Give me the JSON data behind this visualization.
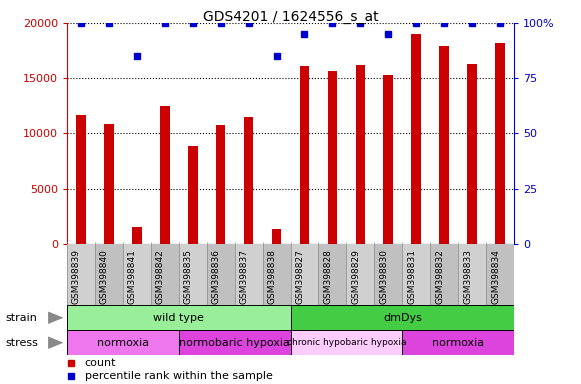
{
  "title": "GDS4201 / 1624556_s_at",
  "samples": [
    "GSM398839",
    "GSM398840",
    "GSM398841",
    "GSM398842",
    "GSM398835",
    "GSM398836",
    "GSM398837",
    "GSM398838",
    "GSM398827",
    "GSM398828",
    "GSM398829",
    "GSM398830",
    "GSM398831",
    "GSM398832",
    "GSM398833",
    "GSM398834"
  ],
  "counts": [
    11700,
    10900,
    1500,
    12500,
    8900,
    10800,
    11500,
    1300,
    16100,
    15700,
    16200,
    15300,
    19000,
    17900,
    16300,
    18200
  ],
  "percentile_ranks": [
    100,
    100,
    85,
    100,
    100,
    100,
    100,
    85,
    95,
    100,
    100,
    95,
    100,
    100,
    100,
    100
  ],
  "bar_color": "#cc0000",
  "dot_color": "#0000cc",
  "ylim_left": [
    0,
    20000
  ],
  "ylim_right": [
    0,
    100
  ],
  "yticks_left": [
    0,
    5000,
    10000,
    15000,
    20000
  ],
  "yticks_right": [
    0,
    25,
    50,
    75,
    100
  ],
  "ytick_labels_left": [
    "0",
    "5000",
    "10000",
    "15000",
    "20000"
  ],
  "ytick_labels_right": [
    "0",
    "25",
    "50",
    "75",
    "100%"
  ],
  "strain_groups": [
    {
      "label": "wild type",
      "start": 0,
      "end": 8,
      "color": "#99ee99"
    },
    {
      "label": "dmDys",
      "start": 8,
      "end": 16,
      "color": "#44cc44"
    }
  ],
  "stress_groups": [
    {
      "label": "normoxia",
      "start": 0,
      "end": 4,
      "color": "#ee77ee"
    },
    {
      "label": "normobaric hypoxia",
      "start": 4,
      "end": 8,
      "color": "#dd44dd"
    },
    {
      "label": "chronic hypobaric hypoxia",
      "start": 8,
      "end": 12,
      "color": "#ffccff"
    },
    {
      "label": "normoxia",
      "start": 12,
      "end": 16,
      "color": "#dd44dd"
    }
  ],
  "legend_count_color": "#cc0000",
  "legend_dot_color": "#0000cc",
  "bg_color": "#ffffff",
  "tick_color_left": "#cc0000",
  "tick_color_right": "#0000cc",
  "bar_width": 0.35
}
